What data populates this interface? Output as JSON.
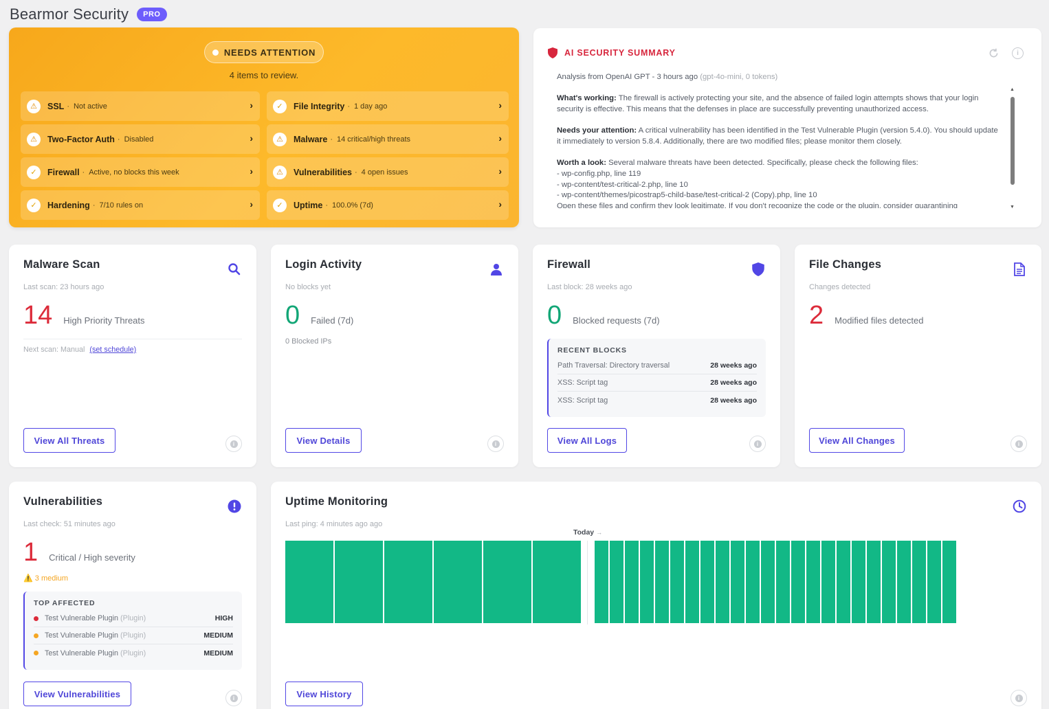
{
  "header": {
    "title": "Bearmor Security",
    "badge": "PRO"
  },
  "attention": {
    "pill": "NEEDS ATTENTION",
    "subtitle": "4 items to review.",
    "items": [
      {
        "name": "SSL",
        "status": "Not active",
        "icon": "warning-icon"
      },
      {
        "name": "File Integrity",
        "status": "1 day ago",
        "icon": "check-icon"
      },
      {
        "name": "Two-Factor Auth",
        "status": "Disabled",
        "icon": "warning-icon"
      },
      {
        "name": "Malware",
        "status": "14 critical/high threats",
        "icon": "warning-icon"
      },
      {
        "name": "Firewall",
        "status": "Active, no blocks this week",
        "icon": "check-icon"
      },
      {
        "name": "Vulnerabilities",
        "status": "4 open issues",
        "icon": "warning-icon"
      },
      {
        "name": "Hardening",
        "status": "7/10 rules on",
        "icon": "check-icon"
      },
      {
        "name": "Uptime",
        "status": "100.0% (7d)",
        "icon": "check-icon"
      }
    ]
  },
  "ai": {
    "title": "AI SECURITY SUMMARY",
    "meta": "Analysis from OpenAI GPT - 3 hours ago",
    "meta_model": "(gpt-4o-mini, 0 tokens)",
    "working_label": "What's working:",
    "working_text": "The firewall is actively protecting your site, and the absence of failed login attempts shows that your login security is effective. This means that the defenses in place are successfully preventing unauthorized access.",
    "attention_label": "Needs your attention:",
    "attention_text": "A critical vulnerability has been identified in the Test Vulnerable Plugin (version 5.4.0). You should update it immediately to version 5.8.4. Additionally, there are two modified files; please monitor them closely.",
    "look_label": "Worth a look:",
    "look_text": "Several malware threats have been detected. Specifically, please check the following files:",
    "look_files": [
      "- wp-config.php, line 119",
      "- wp-content/test-critical-2.php, line 10",
      "- wp-content/themes/picostrap5-child-base/test-critical-2 (Copy).php, line 10"
    ],
    "look_more": "Open these files and confirm they look legitimate. If you don't recognize the code or the plugin, consider quarantining"
  },
  "malware": {
    "title": "Malware Scan",
    "sub": "Last scan: 23 hours ago",
    "count": "14",
    "count_label": "High Priority Threats",
    "next_label": "Next scan: Manual",
    "schedule_link": "(set schedule)",
    "button": "View All Threats"
  },
  "login": {
    "title": "Login Activity",
    "sub": "No blocks yet",
    "count": "0",
    "count_label": "Failed (7d)",
    "extra": "0 Blocked IPs",
    "button": "View Details"
  },
  "firewall": {
    "title": "Firewall",
    "sub": "Last block: 28 weeks ago",
    "count": "0",
    "count_label": "Blocked requests (7d)",
    "recent_heading": "RECENT BLOCKS",
    "recent": [
      {
        "label": "Path Traversal: Directory traversal",
        "when": "28 weeks ago"
      },
      {
        "label": "XSS: Script tag",
        "when": "28 weeks ago"
      },
      {
        "label": "XSS: Script tag",
        "when": "28 weeks ago"
      }
    ],
    "button": "View All Logs"
  },
  "files": {
    "title": "File Changes",
    "sub": "Changes detected",
    "count": "2",
    "count_label": "Modified files detected",
    "button": "View All Changes"
  },
  "vulns": {
    "title": "Vulnerabilities",
    "sub": "Last check: 51 minutes ago",
    "count": "1",
    "count_label": "Critical / High severity",
    "medium": "3 medium",
    "top_heading": "TOP AFFECTED",
    "top": [
      {
        "name": "Test Vulnerable Plugin",
        "type": "(Plugin)",
        "severity": "HIGH",
        "color": "#dc2b3a"
      },
      {
        "name": "Test Vulnerable Plugin",
        "type": "(Plugin)",
        "severity": "MEDIUM",
        "color": "#f5a623"
      },
      {
        "name": "Test Vulnerable Plugin",
        "type": "(Plugin)",
        "severity": "MEDIUM",
        "color": "#f5a623"
      }
    ],
    "button": "View Vulnerabilities"
  },
  "uptime": {
    "title": "Uptime Monitoring",
    "sub": "Last ping: 4 minutes ago ago",
    "today_label": "Today",
    "button": "View History",
    "bar_color": "#12b886"
  },
  "chart_data": {
    "type": "bar",
    "title": "",
    "series": [
      {
        "name": "",
        "segment": "before-today",
        "values": [
          1,
          1,
          1,
          1,
          1,
          1
        ]
      },
      {
        "name": "",
        "segment": "today",
        "values": [
          1,
          1,
          1,
          1,
          1,
          1,
          1,
          1,
          1,
          1,
          1,
          1,
          1,
          1,
          1,
          1,
          1,
          1,
          1,
          1,
          1,
          1,
          1,
          1
        ]
      }
    ]
  }
}
